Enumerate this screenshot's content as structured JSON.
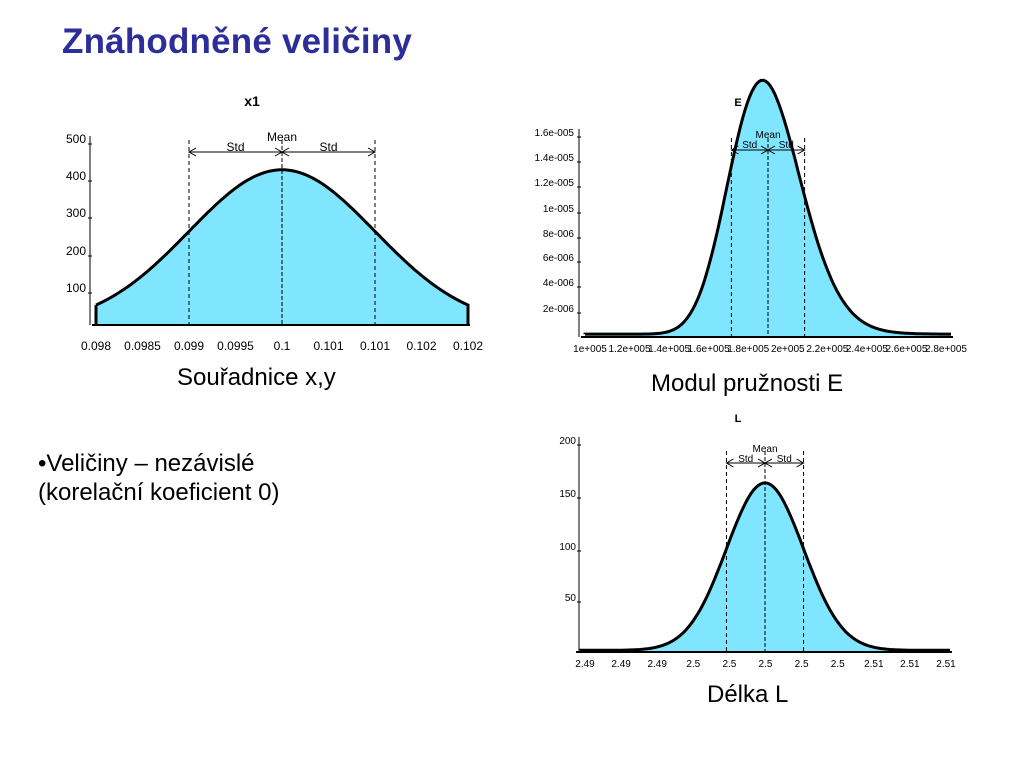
{
  "slide": {
    "title": "Znáhodněné veličiny",
    "bullet_line1": "•Veličiny – nezávislé",
    "bullet_line2": "(korelační koeficient 0)"
  },
  "colors": {
    "title": "#2e2e9a",
    "fill": "#80e6ff",
    "curve": "#000000"
  },
  "captions": {
    "x1": "Souřadnice x,y",
    "E": "Modul pružnosti E",
    "L": "Délka L"
  },
  "chart_data": [
    {
      "id": "x1",
      "type": "area",
      "title": "x1",
      "x_ticks": [
        "0.098",
        "0.0985",
        "0.099",
        "0.0995",
        "0.1",
        "0.101",
        "0.101",
        "0.102",
        "0.102"
      ],
      "y_ticks": [
        "500",
        "400",
        "300",
        "200",
        "100"
      ],
      "y_tick_values": [
        500,
        400,
        300,
        200,
        100
      ],
      "ylim": [
        0,
        520
      ],
      "mean": 0.1,
      "std": 0.001,
      "xlim": [
        0.098,
        0.102
      ],
      "truncated_range": [
        0.098,
        0.102
      ],
      "peak": 420,
      "edge_value": 58,
      "markers": {
        "mean_label": "Mean",
        "std_label": "Std"
      }
    },
    {
      "id": "E",
      "type": "area",
      "title": "E",
      "x_ticks": [
        "1e+005",
        "1.2e+005",
        "1.4e+005",
        "1.6e+005",
        "1.8e+005",
        "2e+005",
        "2.2e+005",
        "2.4e+005",
        "2.6e+005",
        "2.8e+005"
      ],
      "y_ticks": [
        "1.6e-005",
        "1.4e-005",
        "1.2e-005",
        "1e-005",
        "8e-006",
        "6e-006",
        "4e-006",
        "2e-006"
      ],
      "y_tick_values": [
        1.6e-05,
        1.4e-05,
        1.2e-05,
        1e-05,
        8e-06,
        6e-06,
        4e-06,
        2e-06
      ],
      "ylim": [
        0,
        1.65e-05
      ],
      "xlim": [
        100000,
        300000
      ],
      "distribution": "lognormal",
      "mean": 200000,
      "std": 20000,
      "markers": {
        "mean_label": "Mean",
        "std_label": "Std"
      }
    },
    {
      "id": "L",
      "type": "area",
      "title": "L",
      "x_ticks": [
        "2.49",
        "2.49",
        "2.49",
        "2.5",
        "2.5",
        "2.5",
        "2.5",
        "2.5",
        "2.51",
        "2.51",
        "2.51"
      ],
      "y_ticks": [
        "200",
        "150",
        "100",
        "50"
      ],
      "y_tick_values": [
        200,
        150,
        100,
        50
      ],
      "ylim": [
        0,
        205
      ],
      "xlim": [
        2.488,
        2.512
      ],
      "mean": 2.5,
      "std": 0.0025,
      "peak": 160,
      "markers": {
        "mean_label": "Mean",
        "std_label": "Std"
      }
    }
  ]
}
